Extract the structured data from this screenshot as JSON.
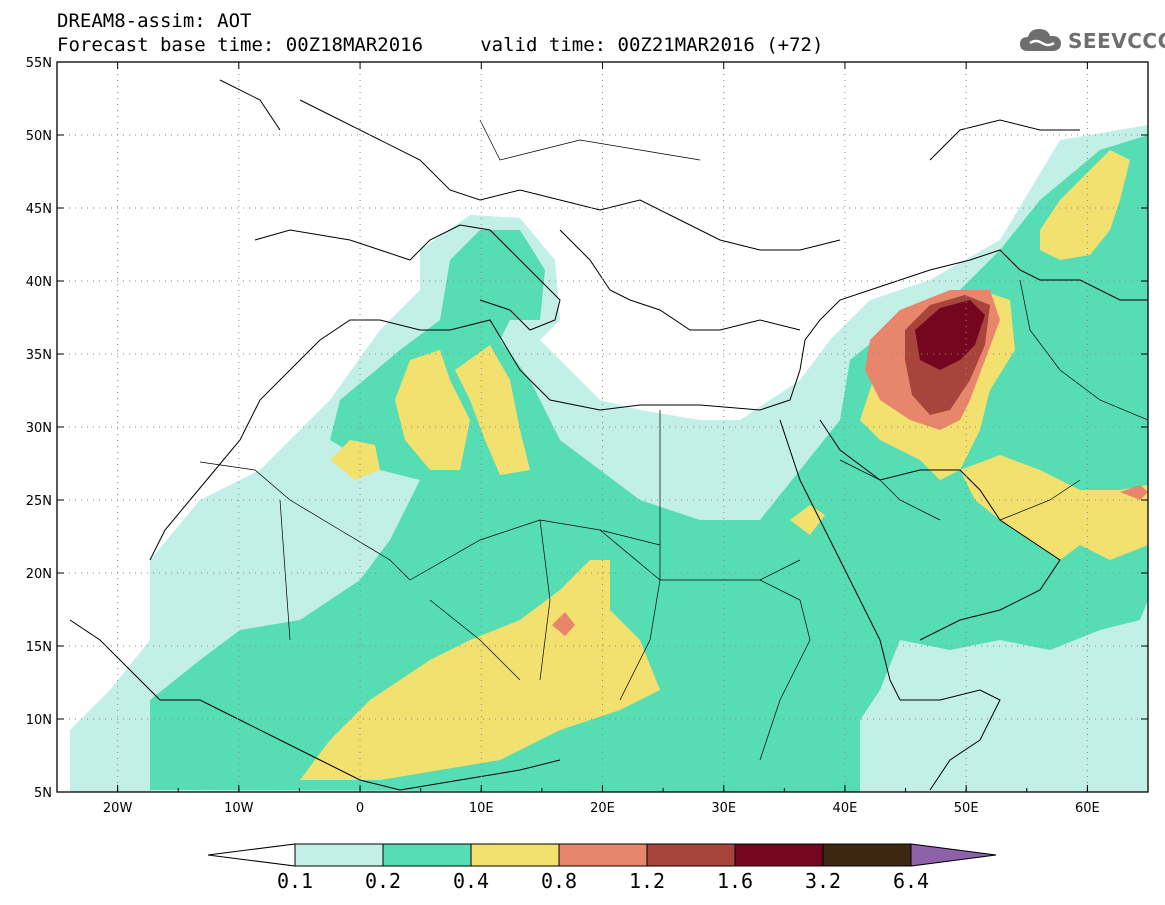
{
  "header": {
    "title_line1": "DREAM8-assim: AOT",
    "title_line2": "Forecast base time: 00Z18MAR2016     valid time: 00Z21MAR2016 (+72)"
  },
  "logo": {
    "text": "SEEVCCC",
    "icon": "cloud-icon",
    "color": "#6e6e6e"
  },
  "map": {
    "lat_ticks": [
      "55N",
      "50N",
      "45N",
      "40N",
      "35N",
      "30N",
      "25N",
      "20N",
      "15N",
      "10N",
      "5N"
    ],
    "lon_ticks": [
      "20W",
      "10W",
      "0",
      "10E",
      "20E",
      "30E",
      "40E",
      "50E",
      "60E"
    ],
    "lat_range": [
      5,
      55
    ],
    "lon_range": [
      -25,
      65
    ],
    "grid": "dotted"
  },
  "colorbar": {
    "labels": [
      "0.1",
      "0.2",
      "0.4",
      "0.8",
      "1.2",
      "1.6",
      "3.2",
      "6.4"
    ],
    "colors": [
      "#ffffff",
      "#c2efe6",
      "#57ddb3",
      "#f2e06f",
      "#e8866b",
      "#a8443c",
      "#75061f",
      "#3d2713",
      "#8d62a8"
    ]
  }
}
